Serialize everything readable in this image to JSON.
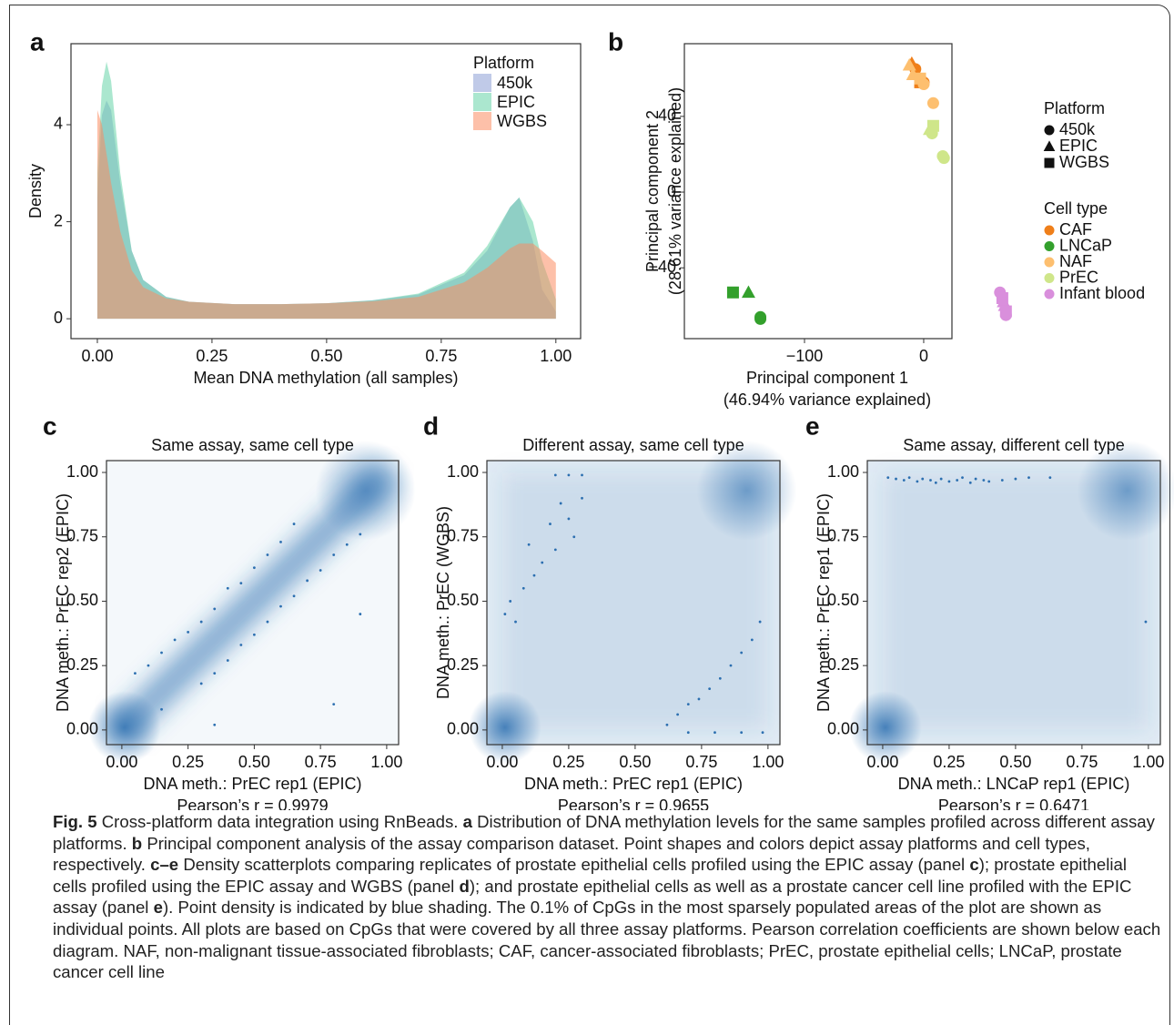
{
  "chart_data": [
    {
      "panel_label": "a",
      "type": "area",
      "xlabel": "Mean DNA methylation (all samples)",
      "ylabel": "Density",
      "x": [
        0,
        0.01,
        0.02,
        0.03,
        0.05,
        0.075,
        0.1,
        0.15,
        0.2,
        0.3,
        0.4,
        0.5,
        0.6,
        0.7,
        0.8,
        0.85,
        0.9,
        0.92,
        0.95,
        0.97,
        1.0
      ],
      "series": [
        {
          "name": "450k",
          "color": "#8c9fd6",
          "values": [
            2.5,
            4.2,
            4.5,
            4.3,
            2.8,
            1.4,
            0.8,
            0.45,
            0.35,
            0.3,
            0.3,
            0.32,
            0.38,
            0.5,
            0.9,
            1.4,
            2.3,
            2.5,
            1.6,
            0.6,
            0.15
          ]
        },
        {
          "name": "EPIC",
          "color": "#66d4a8",
          "values": [
            3.0,
            4.8,
            5.3,
            4.9,
            3.0,
            1.4,
            0.8,
            0.45,
            0.35,
            0.3,
            0.3,
            0.32,
            0.38,
            0.52,
            0.95,
            1.5,
            2.3,
            2.5,
            2.0,
            1.2,
            0.4
          ]
        },
        {
          "name": "WGBS",
          "color": "#fc8d62",
          "values": [
            4.3,
            4.0,
            3.4,
            2.8,
            1.8,
            1.0,
            0.65,
            0.42,
            0.35,
            0.3,
            0.3,
            0.32,
            0.36,
            0.45,
            0.75,
            1.05,
            1.45,
            1.55,
            1.55,
            1.4,
            1.15
          ]
        }
      ],
      "opacity": 0.55,
      "xlim": [
        -0.0575,
        1.054
      ],
      "ylim": [
        -0.41,
        5.67
      ],
      "xticks": [
        {
          "value": 0,
          "label": "0.00"
        },
        {
          "value": 0.25,
          "label": "0.25"
        },
        {
          "value": 0.5,
          "label": "0.50"
        },
        {
          "value": 0.75,
          "label": "0.75"
        },
        {
          "value": 1,
          "label": "1.00"
        }
      ],
      "yticks": [
        0,
        2,
        4
      ],
      "legend": {
        "title": "Platform",
        "position": "top-right"
      }
    },
    {
      "panel_label": "b",
      "type": "scatter",
      "xlabel": [
        "Principal component 1",
        "(46.94% variance explained)"
      ],
      "ylabel": [
        "Principal component 2",
        "(28.61% variance explained)"
      ],
      "xlim": [
        -200.8,
        23.7
      ],
      "ylim": [
        -77.4,
        78.4
      ],
      "xticks": [
        {
          "value": -100,
          "label": "−100"
        },
        0
      ],
      "yticks": [
        {
          "value": -40,
          "label": "−40"
        },
        0,
        40
      ],
      "shape_legend": {
        "title": "Platform",
        "entries": [
          {
            "name": "450k",
            "shape": "circle"
          },
          {
            "name": "EPIC",
            "shape": "triangle"
          },
          {
            "name": "WGBS",
            "shape": "square"
          }
        ]
      },
      "color_legend_title": "Cell type",
      "series": [
        {
          "name": "CAF",
          "color": "#ef7f1a",
          "x": [
            -10,
            -7,
            -5,
            -3,
            0
          ],
          "values": [
            68,
            65,
            62,
            58,
            58
          ],
          "shapes": [
            "triangle",
            "circle",
            "triangle",
            "square",
            "circle"
          ]
        },
        {
          "name": "LNCaP",
          "color": "#33a02c",
          "x": [
            -160,
            -147,
            -137,
            -137
          ],
          "values": [
            -53,
            -53,
            -66,
            -67
          ],
          "shapes": [
            "square",
            "triangle",
            "circle",
            "circle"
          ]
        },
        {
          "name": "NAF",
          "color": "#fdbf6f",
          "x": [
            -12,
            -9,
            -3,
            0,
            8
          ],
          "values": [
            67,
            62,
            60,
            57,
            47
          ],
          "shapes": [
            "triangle",
            "triangle",
            "square",
            "circle",
            "circle"
          ]
        },
        {
          "name": "PrEC",
          "color": "#cfe68a",
          "x": [
            5,
            8,
            7,
            16,
            17
          ],
          "values": [
            33,
            35,
            31,
            19,
            18
          ],
          "shapes": [
            "triangle",
            "square",
            "circle",
            "circle",
            "circle"
          ]
        },
        {
          "name": "Infant blood",
          "color": "#d98fdc",
          "x": [
            64,
            66,
            67,
            68,
            69,
            69
          ],
          "values": [
            -53,
            -56,
            -58,
            -60,
            -65,
            -63
          ],
          "shapes": [
            "circle",
            "square",
            "triangle",
            "triangle",
            "circle",
            "square"
          ]
        }
      ]
    },
    {
      "panel_label": "c",
      "type": "density_scatter",
      "title": "Same assay, same cell type",
      "xlabel": "DNA meth.: PrEC rep1 (EPIC)",
      "ylabel": "DNA meth.: PrEC rep2 (EPIC)",
      "annotation": "Pearson’s r = 0.9979",
      "color": "#2c6fb0",
      "x": [
        0.05,
        0.1,
        0.15,
        0.2,
        0.25,
        0.3,
        0.35,
        0.4,
        0.45,
        0.5,
        0.55,
        0.6,
        0.65,
        0.3,
        0.35,
        0.4,
        0.45,
        0.5,
        0.55,
        0.6,
        0.65,
        0.7,
        0.75,
        0.8,
        0.85,
        0.9,
        0.35,
        0.8,
        0.15,
        0.9
      ],
      "values": [
        0.22,
        0.25,
        0.3,
        0.35,
        0.38,
        0.42,
        0.47,
        0.55,
        0.57,
        0.63,
        0.68,
        0.73,
        0.8,
        0.18,
        0.22,
        0.27,
        0.33,
        0.37,
        0.42,
        0.48,
        0.52,
        0.58,
        0.62,
        0.68,
        0.72,
        0.76,
        0.02,
        0.1,
        0.08,
        0.45
      ],
      "xlim": [
        -0.058,
        1.045
      ],
      "ylim": [
        -0.057,
        1.046
      ],
      "xticks": [
        {
          "value": 0,
          "label": "0.00"
        },
        {
          "value": 0.25,
          "label": "0.25"
        },
        {
          "value": 0.5,
          "label": "0.50"
        },
        {
          "value": 0.75,
          "label": "0.75"
        },
        {
          "value": 1,
          "label": "1.00"
        }
      ],
      "yticks": [
        {
          "value": 0,
          "label": "0.00"
        },
        {
          "value": 0.25,
          "label": "0.25"
        },
        {
          "value": 0.5,
          "label": "0.50"
        },
        {
          "value": 0.75,
          "label": "0.75"
        },
        {
          "value": 1,
          "label": "1.00"
        }
      ]
    },
    {
      "panel_label": "d",
      "type": "density_scatter",
      "title": "Different assay, same cell type",
      "xlabel": "DNA meth.: PrEC rep1 (EPIC)",
      "ylabel": "DNA meth.: PrEC (WGBS)",
      "annotation": "Pearson’s r = 0.9655",
      "color": "#2c6fb0",
      "x": [
        0.01,
        0.03,
        0.05,
        0.08,
        0.1,
        0.12,
        0.15,
        0.18,
        0.2,
        0.22,
        0.25,
        0.27,
        0.3,
        0.2,
        0.25,
        0.3,
        0.62,
        0.66,
        0.7,
        0.74,
        0.78,
        0.82,
        0.86,
        0.9,
        0.94,
        0.97,
        0.7,
        0.8,
        0.9,
        0.98
      ],
      "values": [
        0.45,
        0.5,
        0.42,
        0.55,
        0.72,
        0.6,
        0.65,
        0.8,
        0.7,
        0.88,
        0.82,
        0.75,
        0.9,
        0.99,
        0.99,
        0.99,
        0.02,
        0.06,
        0.1,
        0.12,
        0.16,
        0.2,
        0.25,
        0.3,
        0.35,
        0.42,
        -0.01,
        -0.01,
        -0.01,
        -0.01
      ],
      "xlim": [
        -0.058,
        1.045
      ],
      "ylim": [
        -0.057,
        1.046
      ],
      "xticks": [
        {
          "value": 0,
          "label": "0.00"
        },
        {
          "value": 0.25,
          "label": "0.25"
        },
        {
          "value": 0.5,
          "label": "0.50"
        },
        {
          "value": 0.75,
          "label": "0.75"
        },
        {
          "value": 1,
          "label": "1.00"
        }
      ],
      "yticks": [
        {
          "value": 0,
          "label": "0.00"
        },
        {
          "value": 0.25,
          "label": "0.25"
        },
        {
          "value": 0.5,
          "label": "0.50"
        },
        {
          "value": 0.75,
          "label": "0.75"
        },
        {
          "value": 1,
          "label": "1.00"
        }
      ]
    },
    {
      "panel_label": "e",
      "type": "density_scatter",
      "title": "Same assay, different cell type",
      "xlabel": "DNA meth.: LNCaP rep1 (EPIC)",
      "ylabel": "DNA meth.: PrEC rep1 (EPIC)",
      "annotation": "Pearson’s r = 0.6471",
      "color": "#2c6fb0",
      "x": [
        0.02,
        0.05,
        0.08,
        0.1,
        0.13,
        0.15,
        0.18,
        0.2,
        0.22,
        0.25,
        0.28,
        0.3,
        0.33,
        0.35,
        0.38,
        0.4,
        0.45,
        0.5,
        0.55,
        0.63,
        0.99
      ],
      "values": [
        0.98,
        0.975,
        0.97,
        0.98,
        0.965,
        0.975,
        0.97,
        0.96,
        0.975,
        0.965,
        0.97,
        0.98,
        0.96,
        0.975,
        0.97,
        0.965,
        0.97,
        0.975,
        0.98,
        0.98,
        0.42
      ],
      "xlim": [
        -0.058,
        1.045
      ],
      "ylim": [
        -0.057,
        1.046
      ],
      "xticks": [
        {
          "value": 0,
          "label": "0.00"
        },
        {
          "value": 0.25,
          "label": "0.25"
        },
        {
          "value": 0.5,
          "label": "0.50"
        },
        {
          "value": 0.75,
          "label": "0.75"
        },
        {
          "value": 1,
          "label": "1.00"
        }
      ],
      "yticks": [
        {
          "value": 0,
          "label": "0.00"
        },
        {
          "value": 0.25,
          "label": "0.25"
        },
        {
          "value": 0.5,
          "label": "0.50"
        },
        {
          "value": 0.75,
          "label": "0.75"
        },
        {
          "value": 1,
          "label": "1.00"
        }
      ]
    }
  ],
  "caption": [
    {
      "text": "Fig. 5",
      "bold": true
    },
    " Cross-platform data integration using RnBeads. ",
    {
      "text": "a",
      "bold": true
    },
    " Distribution of DNA methylation levels for the same samples profiled across different assay platforms. ",
    {
      "text": "b",
      "bold": true
    },
    " Principal component analysis of the assay comparison dataset. Point shapes and colors depict assay platforms and cell types, respectively. ",
    {
      "text": "c–e",
      "bold": true
    },
    " Density scatterplots comparing replicates of prostate epithelial cells profiled using the EPIC assay (panel ",
    {
      "text": "c",
      "bold": true
    },
    "); prostate epithelial cells profiled using the EPIC assay and WGBS (panel ",
    {
      "text": "d",
      "bold": true
    },
    "); and prostate epithelial cells as well as a prostate cancer cell line profiled with the EPIC assay (panel ",
    {
      "text": "e",
      "bold": true
    },
    "). Point density is indicated by blue shading. The 0.1% of CpGs in the most sparsely populated areas of the plot are shown as individual points. All plots are based on CpGs that were covered by all three assay platforms. Pearson correlation coefficients are shown below each diagram. NAF, non-malignant tissue-associated fibroblasts; CAF, cancer-associated fibroblasts; PrEC, prostate epithelial cells; LNCaP, prostate cancer cell line"
  ]
}
